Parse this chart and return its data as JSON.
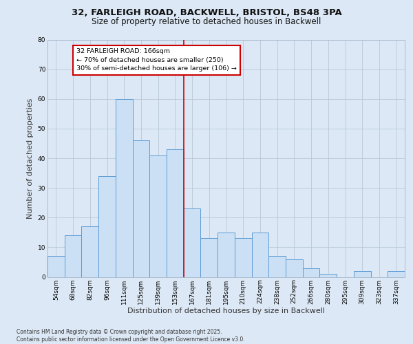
{
  "title_line1": "32, FARLEIGH ROAD, BACKWELL, BRISTOL, BS48 3PA",
  "title_line2": "Size of property relative to detached houses in Backwell",
  "xlabel": "Distribution of detached houses by size in Backwell",
  "ylabel": "Number of detached properties",
  "bar_labels": [
    "54sqm",
    "68sqm",
    "82sqm",
    "96sqm",
    "111sqm",
    "125sqm",
    "139sqm",
    "153sqm",
    "167sqm",
    "181sqm",
    "195sqm",
    "210sqm",
    "224sqm",
    "238sqm",
    "252sqm",
    "266sqm",
    "280sqm",
    "295sqm",
    "309sqm",
    "323sqm",
    "337sqm"
  ],
  "bar_values": [
    7,
    14,
    17,
    34,
    60,
    46,
    41,
    43,
    23,
    13,
    15,
    13,
    15,
    7,
    6,
    3,
    1,
    0,
    2,
    0,
    2
  ],
  "bar_color": "#cce0f5",
  "bar_edge_color": "#5b9bd5",
  "vline_index": 8,
  "vline_color": "#cc0000",
  "annotation_text": "32 FARLEIGH ROAD: 166sqm\n← 70% of detached houses are smaller (250)\n30% of semi-detached houses are larger (106) →",
  "annotation_box_edge": "#cc0000",
  "ylim": [
    0,
    80
  ],
  "yticks": [
    0,
    10,
    20,
    30,
    40,
    50,
    60,
    70,
    80
  ],
  "background_color": "#dce8f5",
  "plot_bg_color": "#dce8f5",
  "footer_text": "Contains HM Land Registry data © Crown copyright and database right 2025.\nContains public sector information licensed under the Open Government Licence v3.0.",
  "title_fontsize": 9.5,
  "subtitle_fontsize": 8.5,
  "tick_fontsize": 6.5,
  "label_fontsize": 8,
  "footer_fontsize": 5.5
}
